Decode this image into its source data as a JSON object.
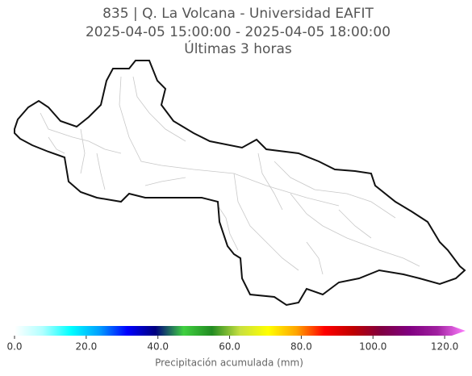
{
  "title": [
    "835 | Q. La Volcana - Universidad EAFIT",
    "2025-04-05 15:00:00 - 2025-04-05 18:00:00",
    "Últimas 3 horas"
  ],
  "colorbar": {
    "label": "Precipitación acumulada (mm)",
    "lim": [
      0,
      122
    ],
    "ticks": [
      {
        "value": 0,
        "label": "0.0"
      },
      {
        "value": 20,
        "label": "20.0"
      },
      {
        "value": 40,
        "label": "40.0"
      },
      {
        "value": 60,
        "label": "60.0"
      },
      {
        "value": 80,
        "label": "80.0"
      },
      {
        "value": 100,
        "label": "100.0"
      },
      {
        "value": 120,
        "label": "120.0"
      }
    ],
    "colors": [
      "#ffffff",
      "#b0ffff",
      "#00ffff",
      "#00a0ff",
      "#0000ff",
      "#00007f",
      "#40d040",
      "#228b22",
      "#c8e040",
      "#ffff00",
      "#ffa500",
      "#ff0000",
      "#c00000",
      "#800040",
      "#800080",
      "#a020a0",
      "#ff80ff"
    ]
  }
}
